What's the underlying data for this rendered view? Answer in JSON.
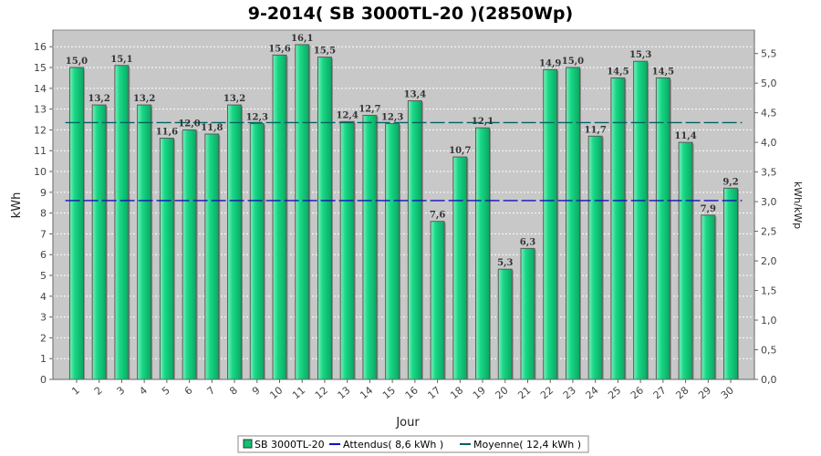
{
  "chart_data": {
    "type": "bar",
    "title": "9-2014( SB 3000TL-20 )(2850Wp)",
    "xlabel": "Jour",
    "ylabel": "kWh",
    "y2label": "kWh/kWp",
    "categories": [
      "1",
      "2",
      "3",
      "4",
      "5",
      "6",
      "7",
      "8",
      "9",
      "10",
      "11",
      "12",
      "13",
      "14",
      "15",
      "16",
      "17",
      "18",
      "19",
      "20",
      "21",
      "22",
      "23",
      "24",
      "25",
      "26",
      "27",
      "28",
      "29",
      "30"
    ],
    "series": [
      {
        "name": "SB 3000TL-20",
        "type": "bar",
        "color": "#10c070",
        "values": [
          15.0,
          13.2,
          15.1,
          13.2,
          11.6,
          12.0,
          11.8,
          13.2,
          12.3,
          15.6,
          16.1,
          15.5,
          12.4,
          12.7,
          12.3,
          13.4,
          7.6,
          10.7,
          12.1,
          5.3,
          6.3,
          14.9,
          15.0,
          11.7,
          14.5,
          15.3,
          14.5,
          11.4,
          7.9,
          9.2
        ],
        "labels": [
          "15,0",
          "13,2",
          "15,1",
          "13,2",
          "11,6",
          "12,0",
          "11,8",
          "13,2",
          "12,3",
          "15,6",
          "16,1",
          "15,5",
          "12,4",
          "12,7",
          "12,3",
          "13,4",
          "7,6",
          "10,7",
          "12,1",
          "5,3",
          "6,3",
          "14,9",
          "15,0",
          "11,7",
          "14,5",
          "15,3",
          "14,5",
          "11,4",
          "7,9",
          "9,2"
        ]
      },
      {
        "name": "Attendus( 8,6 kWh )",
        "type": "line",
        "color": "#1010c0",
        "value": 8.6
      },
      {
        "name": "Moyenne( 12,4 kWh )",
        "type": "line",
        "color": "#006060",
        "value": 12.35
      }
    ],
    "ylim": [
      0,
      16.8
    ],
    "yticks": [
      0,
      1,
      2,
      3,
      4,
      5,
      6,
      7,
      8,
      9,
      10,
      11,
      12,
      13,
      14,
      15,
      16
    ],
    "y2ticks": [
      0,
      0.5,
      1,
      1.5,
      2,
      2.5,
      3,
      3.5,
      4,
      4.5,
      5,
      5.5
    ],
    "y2ticklabels": [
      "0,0",
      "0,5",
      "1,0",
      "1,5",
      "2,0",
      "2,5",
      "3,0",
      "3,5",
      "4,0",
      "4,5",
      "5,0",
      "5,5"
    ],
    "y2ratio": 2.85,
    "grid": true,
    "legend_position": "bottom",
    "plot_background": "#c8c8c8"
  }
}
